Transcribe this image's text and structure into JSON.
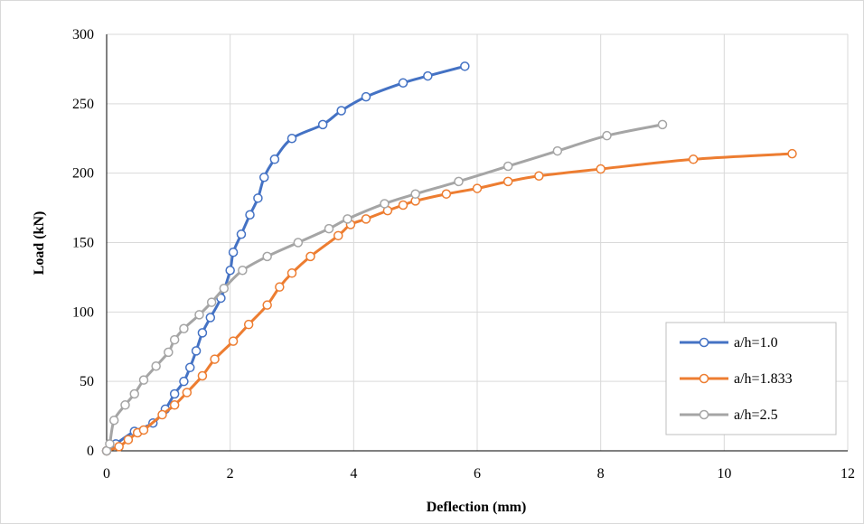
{
  "chart_data": {
    "type": "line",
    "title": "",
    "xlabel": "Deflection (mm)",
    "ylabel": "Load (kN)",
    "xlim": [
      0,
      12
    ],
    "ylim": [
      0,
      300
    ],
    "xticks": [
      "0",
      "2",
      "4",
      "6",
      "8",
      "10",
      "12"
    ],
    "yticks": [
      "0",
      "50",
      "100",
      "150",
      "200",
      "250",
      "300"
    ],
    "grid": "vertical and horizontal",
    "legend": "bottom-right",
    "series": [
      {
        "name": "a/h=1.0",
        "color": "#4472C4",
        "points": [
          [
            0,
            0
          ],
          [
            0.15,
            5
          ],
          [
            0.45,
            14
          ],
          [
            0.75,
            20
          ],
          [
            0.95,
            30
          ],
          [
            1.1,
            41
          ],
          [
            1.25,
            50
          ],
          [
            1.35,
            60
          ],
          [
            1.45,
            72
          ],
          [
            1.55,
            85
          ],
          [
            1.68,
            96
          ],
          [
            1.85,
            110
          ],
          [
            2.0,
            130
          ],
          [
            2.05,
            143
          ],
          [
            2.18,
            156
          ],
          [
            2.32,
            170
          ],
          [
            2.45,
            182
          ],
          [
            2.55,
            197
          ],
          [
            2.72,
            210
          ],
          [
            3.0,
            225
          ],
          [
            3.5,
            235
          ],
          [
            3.8,
            245
          ],
          [
            4.2,
            255
          ],
          [
            4.8,
            265
          ],
          [
            5.2,
            270
          ],
          [
            5.8,
            277
          ]
        ]
      },
      {
        "name": "a/h=1.833",
        "color": "#ED7D31",
        "points": [
          [
            0,
            0
          ],
          [
            0.2,
            3
          ],
          [
            0.35,
            8
          ],
          [
            0.5,
            13
          ],
          [
            0.6,
            15
          ],
          [
            0.9,
            26
          ],
          [
            1.1,
            33
          ],
          [
            1.3,
            42
          ],
          [
            1.55,
            54
          ],
          [
            1.75,
            66
          ],
          [
            2.05,
            79
          ],
          [
            2.3,
            91
          ],
          [
            2.6,
            105
          ],
          [
            2.8,
            118
          ],
          [
            3.0,
            128
          ],
          [
            3.3,
            140
          ],
          [
            3.75,
            155
          ],
          [
            3.95,
            163
          ],
          [
            4.2,
            167
          ],
          [
            4.55,
            173
          ],
          [
            4.8,
            177
          ],
          [
            5.0,
            180
          ],
          [
            5.5,
            185
          ],
          [
            6.0,
            189
          ],
          [
            6.5,
            194
          ],
          [
            7.0,
            198
          ],
          [
            8.0,
            203
          ],
          [
            9.5,
            210
          ],
          [
            11.1,
            214
          ]
        ]
      },
      {
        "name": "a/h=2.5",
        "color": "#A5A5A5",
        "points": [
          [
            0,
            0
          ],
          [
            0.05,
            5
          ],
          [
            0.12,
            22
          ],
          [
            0.3,
            33
          ],
          [
            0.45,
            41
          ],
          [
            0.6,
            51
          ],
          [
            0.8,
            61
          ],
          [
            1.0,
            71
          ],
          [
            1.1,
            80
          ],
          [
            1.25,
            88
          ],
          [
            1.5,
            98
          ],
          [
            1.7,
            107
          ],
          [
            1.9,
            117
          ],
          [
            2.2,
            130
          ],
          [
            2.6,
            140
          ],
          [
            3.1,
            150
          ],
          [
            3.6,
            160
          ],
          [
            3.9,
            167
          ],
          [
            4.5,
            178
          ],
          [
            5.0,
            185
          ],
          [
            5.7,
            194
          ],
          [
            6.5,
            205
          ],
          [
            7.3,
            216
          ],
          [
            8.1,
            227
          ],
          [
            9.0,
            235
          ]
        ]
      }
    ]
  }
}
